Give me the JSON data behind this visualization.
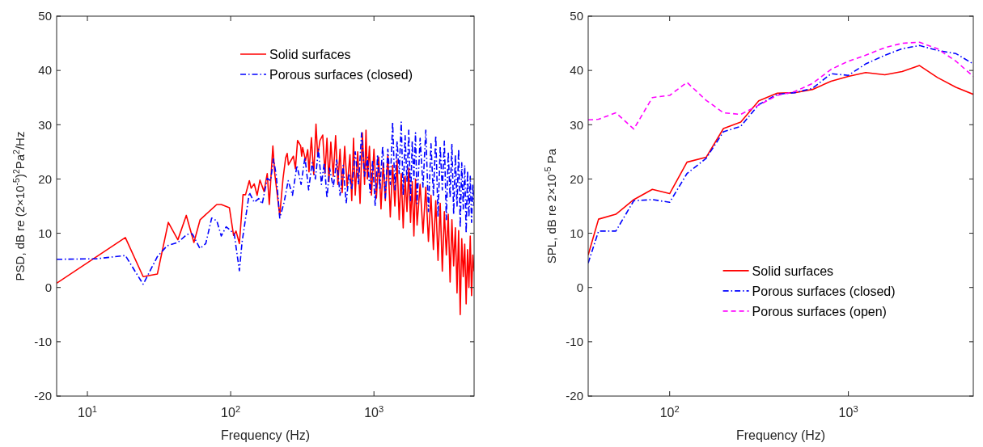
{
  "chart_data": [
    {
      "type": "line",
      "xlabel": "Frequency (Hz)",
      "ylabel": "PSD, dB re (2×10$^{-5}$)$^{2}$Pa$^{2}$/Hz",
      "log": "x",
      "xlim": [
        6.1,
        5000
      ],
      "ylim": [
        -20,
        50
      ],
      "xticks": [
        {
          "value": 10,
          "label": "10$^{1}$"
        },
        {
          "value": 100,
          "label": "10$^{2}$"
        },
        {
          "value": 1000,
          "label": "10$^{3}$"
        }
      ],
      "yticks": [
        -20,
        -10,
        0,
        10,
        20,
        30,
        40,
        50
      ],
      "grid": false,
      "legend": "top",
      "series": [
        {
          "name": "Solid surfaces",
          "color": "#ff0000",
          "line_style": "solid",
          "x": [
            6.1,
            18.4,
            24.5,
            30.8,
            36.7,
            42.8,
            49,
            55.4,
            61.2,
            80,
            86,
            98,
            104.8,
            109,
            115,
            122,
            127,
            135,
            139,
            146,
            153,
            160,
            171,
            180,
            186,
            197,
            203,
            220,
            232,
            242,
            248,
            253,
            274,
            283,
            293,
            308,
            313,
            318,
            333,
            345,
            352,
            366,
            380,
            394,
            405,
            420,
            439,
            455,
            470,
            485,
            500,
            520,
            540,
            560,
            580,
            600,
            625,
            650,
            680,
            700,
            720,
            740,
            770,
            800,
            830,
            860,
            880,
            900,
            930,
            960,
            1000,
            1040,
            1080,
            1120,
            1160,
            1200,
            1250,
            1300,
            1350,
            1400,
            1450,
            1500,
            1550,
            1600,
            1650,
            1700,
            1750,
            1800,
            1850,
            1900,
            1950,
            2000,
            2100,
            2200,
            2300,
            2400,
            2500,
            2600,
            2700,
            2800,
            2900,
            3000,
            3100,
            3200,
            3300,
            3400,
            3500,
            3600,
            3700,
            3800,
            3900,
            4000,
            4100,
            4200,
            4300,
            4400,
            4500,
            4600,
            4700,
            4800,
            4900,
            5000
          ],
          "values": [
            0.8,
            9.2,
            2.0,
            2.5,
            12.0,
            8.8,
            13.3,
            8.3,
            12.5,
            15.3,
            15.3,
            14.7,
            9.6,
            10.4,
            8.1,
            17.1,
            17.1,
            19.7,
            18.3,
            19.1,
            17.0,
            19.8,
            17.7,
            21.0,
            15.3,
            26.1,
            21.0,
            13.3,
            20.1,
            23.9,
            24.7,
            22.6,
            24.2,
            21.9,
            27.1,
            26.1,
            24.2,
            25.8,
            23.4,
            25.4,
            21.3,
            27.6,
            20.8,
            30.1,
            24.2,
            27.1,
            28.1,
            21.0,
            27.5,
            19.5,
            26.8,
            20.5,
            28.0,
            19.0,
            25.5,
            17.5,
            26.0,
            18.5,
            24.5,
            16.0,
            27.5,
            17.0,
            25.0,
            15.5,
            28.5,
            19.0,
            29.0,
            20.0,
            26.0,
            17.0,
            25.5,
            16.5,
            24.0,
            14.5,
            23.0,
            16.0,
            24.5,
            13.0,
            22.5,
            15.0,
            23.5,
            12.5,
            21.0,
            11.0,
            20.5,
            14.0,
            22.0,
            12.0,
            19.5,
            9.5,
            20.0,
            11.5,
            19.0,
            10.0,
            18.5,
            8.5,
            17.0,
            7.0,
            16.0,
            5.0,
            15.5,
            3.0,
            14.0,
            6.0,
            13.5,
            1.0,
            12.5,
            4.0,
            11.0,
            -1.0,
            10.5,
            -5.0,
            9.0,
            2.0,
            8.0,
            -3.0,
            7.0,
            0.0,
            9.5,
            -1.5,
            6.0,
            3.0
          ]
        },
        {
          "name": "Porous surfaces (closed)",
          "color": "#0000ff",
          "line_style": "dashdot",
          "x": [
            6.1,
            11.5,
            18.4,
            24.5,
            30.8,
            36,
            42.8,
            49.5,
            54,
            61,
            67,
            73.7,
            80,
            86,
            93,
            100,
            106,
            115,
            120,
            135,
            146,
            157,
            166,
            180,
            190,
            199,
            208,
            220,
            236,
            252,
            270,
            290,
            310,
            330,
            350,
            370,
            390,
            410,
            430,
            450,
            470,
            490,
            520,
            550,
            580,
            610,
            640,
            670,
            700,
            740,
            780,
            820,
            860,
            900,
            940,
            980,
            1020,
            1060,
            1100,
            1150,
            1200,
            1250,
            1300,
            1350,
            1400,
            1450,
            1500,
            1550,
            1600,
            1650,
            1700,
            1750,
            1800,
            1850,
            1900,
            1950,
            2000,
            2100,
            2200,
            2300,
            2400,
            2500,
            2600,
            2700,
            2800,
            2900,
            3000,
            3100,
            3200,
            3300,
            3400,
            3500,
            3600,
            3700,
            3800,
            3900,
            4000,
            4100,
            4200,
            4300,
            4400,
            4500,
            4600,
            4700,
            4800,
            4900,
            5000
          ],
          "values": [
            5.2,
            5.3,
            5.9,
            0.6,
            5.7,
            7.7,
            8.3,
            9.8,
            9.9,
            7.2,
            8.1,
            12.8,
            12.3,
            9.5,
            11.2,
            10.5,
            9.8,
            3.1,
            8.3,
            17.5,
            15.7,
            16.4,
            15.4,
            20.1,
            19.7,
            23.7,
            20.7,
            12.8,
            15.7,
            19.7,
            17.0,
            22.5,
            19.0,
            24.0,
            18.0,
            23.0,
            20.0,
            25.5,
            19.0,
            23.0,
            16.5,
            22.0,
            18.5,
            23.5,
            17.0,
            22.5,
            15.5,
            21.0,
            18.0,
            25.0,
            19.0,
            28.5,
            20.5,
            24.0,
            17.5,
            23.5,
            15.0,
            24.5,
            18.0,
            26.0,
            16.5,
            25.5,
            19.0,
            30.5,
            18.0,
            27.0,
            21.0,
            30.5,
            17.0,
            28.0,
            19.5,
            29.0,
            16.0,
            27.0,
            20.0,
            28.5,
            15.5,
            27.5,
            18.5,
            29.0,
            14.0,
            26.5,
            17.0,
            28.0,
            13.0,
            26.0,
            18.0,
            27.0,
            12.5,
            25.0,
            16.5,
            26.5,
            13.5,
            24.5,
            15.0,
            25.5,
            11.0,
            23.0,
            14.5,
            22.5,
            10.0,
            21.5,
            13.0,
            20.5,
            12.0,
            19.0,
            15.0
          ]
        }
      ]
    },
    {
      "type": "line",
      "xlabel": "Frequency (Hz)",
      "ylabel": "SPL, dB re 2×10$^{-5}$ Pa",
      "log": "x",
      "xlim": [
        35,
        5000
      ],
      "ylim": [
        -20,
        50
      ],
      "xticks": [
        {
          "value": 100,
          "label": "10$^{2}$"
        },
        {
          "value": 1000,
          "label": "10$^{3}$"
        }
      ],
      "yticks": [
        -20,
        -10,
        0,
        10,
        20,
        30,
        40,
        50
      ],
      "grid": false,
      "legend": "bottom",
      "series": [
        {
          "name": "Solid surfaces",
          "color": "#ff0000",
          "line_style": "solid",
          "x": [
            35,
            40,
            50,
            63,
            80,
            100,
            125,
            160,
            200,
            250,
            315,
            400,
            500,
            630,
            800,
            1000,
            1250,
            1600,
            2000,
            2500,
            3150,
            4000,
            5000
          ],
          "values": [
            6.0,
            12.6,
            13.5,
            16.2,
            18.1,
            17.3,
            23.1,
            24.0,
            29.3,
            30.5,
            34.4,
            35.8,
            35.9,
            36.5,
            38.0,
            38.9,
            39.6,
            39.2,
            39.8,
            40.9,
            38.7,
            36.9,
            35.6
          ]
        },
        {
          "name": "Porous surfaces (closed)",
          "color": "#0000ff",
          "line_style": "dashdot",
          "x": [
            35,
            40,
            50,
            63,
            80,
            100,
            125,
            160,
            200,
            250,
            315,
            400,
            500,
            630,
            800,
            1000,
            1250,
            1600,
            2000,
            2500,
            3150,
            4000,
            5000
          ],
          "values": [
            4.5,
            10.4,
            10.4,
            16.0,
            16.2,
            15.7,
            21.0,
            23.8,
            28.7,
            29.7,
            33.7,
            35.6,
            35.9,
            36.7,
            39.4,
            39.1,
            41.2,
            42.8,
            44.0,
            44.6,
            43.7,
            43.1,
            41.2
          ]
        },
        {
          "name": "Porous surfaces (open)",
          "color": "#ff00ff",
          "line_style": "dashed",
          "x": [
            35,
            40,
            50,
            63,
            80,
            100,
            125,
            160,
            200,
            250,
            315,
            400,
            500,
            630,
            800,
            1000,
            1250,
            1600,
            2000,
            2500,
            3150,
            4000,
            5000
          ],
          "values": [
            30.9,
            31.0,
            32.2,
            29.2,
            35.0,
            35.4,
            37.8,
            34.5,
            32.2,
            31.9,
            33.6,
            35.4,
            36.1,
            37.6,
            40.2,
            41.7,
            42.8,
            44.2,
            45.0,
            45.2,
            44.0,
            41.7,
            38.9
          ]
        }
      ]
    }
  ]
}
